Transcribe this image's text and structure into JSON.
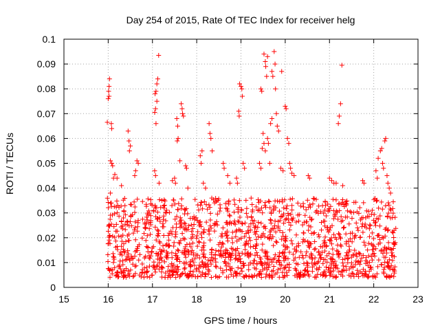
{
  "chart_data": {
    "type": "scatter",
    "title": "Day 254 of 2015, Rate Of TEC Index for receiver helg",
    "xlabel": "GPS time / hours",
    "ylabel": "ROTI / TECUs",
    "xlim": [
      15,
      23
    ],
    "ylim": [
      0,
      0.1
    ],
    "x_ticks": [
      15,
      16,
      17,
      18,
      19,
      20,
      21,
      22,
      23
    ],
    "x_tick_labels": [
      "15",
      "16",
      "17",
      "18",
      "19",
      "20",
      "21",
      "22",
      "23"
    ],
    "y_ticks": [
      0,
      0.01,
      0.02,
      0.03,
      0.04,
      0.05,
      0.06,
      0.07,
      0.08,
      0.09,
      0.1
    ],
    "y_tick_labels": [
      "0",
      "0.01",
      "0.02",
      "0.03",
      "0.04",
      "0.05",
      "0.06",
      "0.07",
      "0.08",
      "0.09",
      "0.1"
    ],
    "grid": true,
    "marker": "+",
    "marker_color": "#ff0000",
    "data_x_range": [
      15.98,
      22.5
    ],
    "series": [
      {
        "name": "ROTI",
        "points": [
          [
            15.98,
            0.0665
          ],
          [
            16.0,
            0.076
          ],
          [
            16.01,
            0.079
          ],
          [
            16.02,
            0.081
          ],
          [
            16.03,
            0.084
          ],
          [
            16.02,
            0.077
          ],
          [
            16.07,
            0.066
          ],
          [
            16.08,
            0.064
          ],
          [
            16.05,
            0.051
          ],
          [
            16.08,
            0.05
          ],
          [
            16.1,
            0.049
          ],
          [
            16.15,
            0.0455
          ],
          [
            16.2,
            0.044
          ],
          [
            16.12,
            0.044
          ],
          [
            16.05,
            0.038
          ],
          [
            16.45,
            0.063
          ],
          [
            16.47,
            0.059
          ],
          [
            16.5,
            0.057
          ],
          [
            16.48,
            0.055
          ],
          [
            16.65,
            0.051
          ],
          [
            16.68,
            0.05
          ],
          [
            16.62,
            0.047
          ],
          [
            16.6,
            0.045
          ],
          [
            16.3,
            0.041
          ],
          [
            17.05,
            0.0705
          ],
          [
            17.07,
            0.072
          ],
          [
            17.06,
            0.078
          ],
          [
            17.08,
            0.079
          ],
          [
            17.1,
            0.082
          ],
          [
            17.12,
            0.084
          ],
          [
            17.14,
            0.0935
          ],
          [
            17.08,
            0.066
          ],
          [
            17.1,
            0.075
          ],
          [
            17.05,
            0.047
          ],
          [
            17.07,
            0.045
          ],
          [
            17.15,
            0.042
          ],
          [
            17.55,
            0.068
          ],
          [
            17.57,
            0.065
          ],
          [
            17.58,
            0.06
          ],
          [
            17.56,
            0.059
          ],
          [
            17.65,
            0.074
          ],
          [
            17.67,
            0.072
          ],
          [
            17.68,
            0.07
          ],
          [
            17.7,
            0.069
          ],
          [
            17.62,
            0.051
          ],
          [
            17.75,
            0.049
          ],
          [
            17.77,
            0.048
          ],
          [
            17.5,
            0.044
          ],
          [
            17.52,
            0.042
          ],
          [
            17.45,
            0.043
          ],
          [
            17.8,
            0.04
          ],
          [
            18.08,
            0.053
          ],
          [
            18.1,
            0.05
          ],
          [
            18.12,
            0.055
          ],
          [
            18.15,
            0.042
          ],
          [
            18.2,
            0.04
          ],
          [
            18.28,
            0.066
          ],
          [
            18.3,
            0.062
          ],
          [
            18.32,
            0.06
          ],
          [
            18.35,
            0.055
          ],
          [
            18.6,
            0.05
          ],
          [
            18.62,
            0.048
          ],
          [
            18.7,
            0.045
          ],
          [
            18.75,
            0.042
          ],
          [
            18.95,
            0.071
          ],
          [
            18.96,
            0.069
          ],
          [
            18.97,
            0.082
          ],
          [
            19.0,
            0.081
          ],
          [
            19.02,
            0.08
          ],
          [
            19.03,
            0.077
          ],
          [
            19.05,
            0.05
          ],
          [
            19.08,
            0.048
          ],
          [
            18.9,
            0.044
          ],
          [
            18.92,
            0.042
          ],
          [
            19.45,
            0.08
          ],
          [
            19.47,
            0.079
          ],
          [
            19.52,
            0.094
          ],
          [
            19.55,
            0.091
          ],
          [
            19.56,
            0.089
          ],
          [
            19.58,
            0.085
          ],
          [
            19.6,
            0.093
          ],
          [
            19.7,
            0.087
          ],
          [
            19.72,
            0.085
          ],
          [
            19.75,
            0.095
          ],
          [
            19.77,
            0.09
          ],
          [
            19.78,
            0.08
          ],
          [
            19.92,
            0.087
          ],
          [
            19.5,
            0.062
          ],
          [
            19.52,
            0.058
          ],
          [
            19.48,
            0.056
          ],
          [
            19.55,
            0.055
          ],
          [
            19.6,
            0.06
          ],
          [
            19.62,
            0.058
          ],
          [
            19.67,
            0.066
          ],
          [
            19.7,
            0.068
          ],
          [
            19.8,
            0.07
          ],
          [
            19.82,
            0.065
          ],
          [
            19.85,
            0.063
          ],
          [
            19.42,
            0.05
          ],
          [
            19.45,
            0.048
          ],
          [
            19.65,
            0.05
          ],
          [
            19.9,
            0.048
          ],
          [
            19.95,
            0.047
          ],
          [
            20.0,
            0.073
          ],
          [
            20.02,
            0.072
          ],
          [
            20.05,
            0.06
          ],
          [
            20.08,
            0.058
          ],
          [
            20.1,
            0.05
          ],
          [
            20.12,
            0.048
          ],
          [
            20.15,
            0.046
          ],
          [
            20.2,
            0.045
          ],
          [
            20.52,
            0.045
          ],
          [
            20.55,
            0.044
          ],
          [
            21.0,
            0.044
          ],
          [
            21.05,
            0.043
          ],
          [
            21.1,
            0.042
          ],
          [
            21.2,
            0.066
          ],
          [
            21.22,
            0.069
          ],
          [
            21.25,
            0.074
          ],
          [
            21.28,
            0.0895
          ],
          [
            21.15,
            0.042
          ],
          [
            21.3,
            0.041
          ],
          [
            21.75,
            0.043
          ],
          [
            21.78,
            0.042
          ],
          [
            22.1,
            0.052
          ],
          [
            22.15,
            0.055
          ],
          [
            22.18,
            0.056
          ],
          [
            22.2,
            0.05
          ],
          [
            22.22,
            0.048
          ],
          [
            22.25,
            0.059
          ],
          [
            22.27,
            0.06
          ],
          [
            22.3,
            0.045
          ],
          [
            22.32,
            0.042
          ],
          [
            22.35,
            0.04
          ],
          [
            22.38,
            0.038
          ],
          [
            22.05,
            0.047
          ],
          [
            22.08,
            0.044
          ]
        ],
        "dense_band": {
          "description": "dense cloud of ROTI values between about 0.005 and 0.035 across the full data x-range",
          "x_range": [
            15.98,
            22.5
          ],
          "y_range": [
            0.004,
            0.036
          ]
        }
      }
    ]
  }
}
